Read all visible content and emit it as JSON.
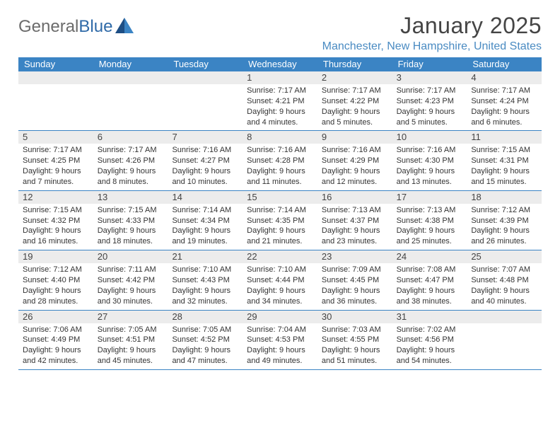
{
  "brand": {
    "part1": "General",
    "part2": "Blue"
  },
  "title": "January 2025",
  "location": "Manchester, New Hampshire, United States",
  "colors": {
    "header_bg": "#3b84c4",
    "header_text": "#ffffff",
    "daynum_bg": "#ececec",
    "rule": "#3b84c4",
    "location_text": "#4a8bc2",
    "title_text": "#454545",
    "body_text": "#333333",
    "logo_gray": "#6b6b6b",
    "logo_blue": "#2f6aa8"
  },
  "day_names": [
    "Sunday",
    "Monday",
    "Tuesday",
    "Wednesday",
    "Thursday",
    "Friday",
    "Saturday"
  ],
  "weeks": [
    {
      "nums": [
        "",
        "",
        "",
        "1",
        "2",
        "3",
        "4"
      ],
      "cells": [
        null,
        null,
        null,
        {
          "sr": "7:17 AM",
          "ss": "4:21 PM",
          "dl": "9 hours and 4 minutes."
        },
        {
          "sr": "7:17 AM",
          "ss": "4:22 PM",
          "dl": "9 hours and 5 minutes."
        },
        {
          "sr": "7:17 AM",
          "ss": "4:23 PM",
          "dl": "9 hours and 5 minutes."
        },
        {
          "sr": "7:17 AM",
          "ss": "4:24 PM",
          "dl": "9 hours and 6 minutes."
        }
      ]
    },
    {
      "nums": [
        "5",
        "6",
        "7",
        "8",
        "9",
        "10",
        "11"
      ],
      "cells": [
        {
          "sr": "7:17 AM",
          "ss": "4:25 PM",
          "dl": "9 hours and 7 minutes."
        },
        {
          "sr": "7:17 AM",
          "ss": "4:26 PM",
          "dl": "9 hours and 8 minutes."
        },
        {
          "sr": "7:16 AM",
          "ss": "4:27 PM",
          "dl": "9 hours and 10 minutes."
        },
        {
          "sr": "7:16 AM",
          "ss": "4:28 PM",
          "dl": "9 hours and 11 minutes."
        },
        {
          "sr": "7:16 AM",
          "ss": "4:29 PM",
          "dl": "9 hours and 12 minutes."
        },
        {
          "sr": "7:16 AM",
          "ss": "4:30 PM",
          "dl": "9 hours and 13 minutes."
        },
        {
          "sr": "7:15 AM",
          "ss": "4:31 PM",
          "dl": "9 hours and 15 minutes."
        }
      ]
    },
    {
      "nums": [
        "12",
        "13",
        "14",
        "15",
        "16",
        "17",
        "18"
      ],
      "cells": [
        {
          "sr": "7:15 AM",
          "ss": "4:32 PM",
          "dl": "9 hours and 16 minutes."
        },
        {
          "sr": "7:15 AM",
          "ss": "4:33 PM",
          "dl": "9 hours and 18 minutes."
        },
        {
          "sr": "7:14 AM",
          "ss": "4:34 PM",
          "dl": "9 hours and 19 minutes."
        },
        {
          "sr": "7:14 AM",
          "ss": "4:35 PM",
          "dl": "9 hours and 21 minutes."
        },
        {
          "sr": "7:13 AM",
          "ss": "4:37 PM",
          "dl": "9 hours and 23 minutes."
        },
        {
          "sr": "7:13 AM",
          "ss": "4:38 PM",
          "dl": "9 hours and 25 minutes."
        },
        {
          "sr": "7:12 AM",
          "ss": "4:39 PM",
          "dl": "9 hours and 26 minutes."
        }
      ]
    },
    {
      "nums": [
        "19",
        "20",
        "21",
        "22",
        "23",
        "24",
        "25"
      ],
      "cells": [
        {
          "sr": "7:12 AM",
          "ss": "4:40 PM",
          "dl": "9 hours and 28 minutes."
        },
        {
          "sr": "7:11 AM",
          "ss": "4:42 PM",
          "dl": "9 hours and 30 minutes."
        },
        {
          "sr": "7:10 AM",
          "ss": "4:43 PM",
          "dl": "9 hours and 32 minutes."
        },
        {
          "sr": "7:10 AM",
          "ss": "4:44 PM",
          "dl": "9 hours and 34 minutes."
        },
        {
          "sr": "7:09 AM",
          "ss": "4:45 PM",
          "dl": "9 hours and 36 minutes."
        },
        {
          "sr": "7:08 AM",
          "ss": "4:47 PM",
          "dl": "9 hours and 38 minutes."
        },
        {
          "sr": "7:07 AM",
          "ss": "4:48 PM",
          "dl": "9 hours and 40 minutes."
        }
      ]
    },
    {
      "nums": [
        "26",
        "27",
        "28",
        "29",
        "30",
        "31",
        ""
      ],
      "cells": [
        {
          "sr": "7:06 AM",
          "ss": "4:49 PM",
          "dl": "9 hours and 42 minutes."
        },
        {
          "sr": "7:05 AM",
          "ss": "4:51 PM",
          "dl": "9 hours and 45 minutes."
        },
        {
          "sr": "7:05 AM",
          "ss": "4:52 PM",
          "dl": "9 hours and 47 minutes."
        },
        {
          "sr": "7:04 AM",
          "ss": "4:53 PM",
          "dl": "9 hours and 49 minutes."
        },
        {
          "sr": "7:03 AM",
          "ss": "4:55 PM",
          "dl": "9 hours and 51 minutes."
        },
        {
          "sr": "7:02 AM",
          "ss": "4:56 PM",
          "dl": "9 hours and 54 minutes."
        },
        null
      ]
    }
  ],
  "labels": {
    "sunrise": "Sunrise:",
    "sunset": "Sunset:",
    "daylight": "Daylight:"
  }
}
